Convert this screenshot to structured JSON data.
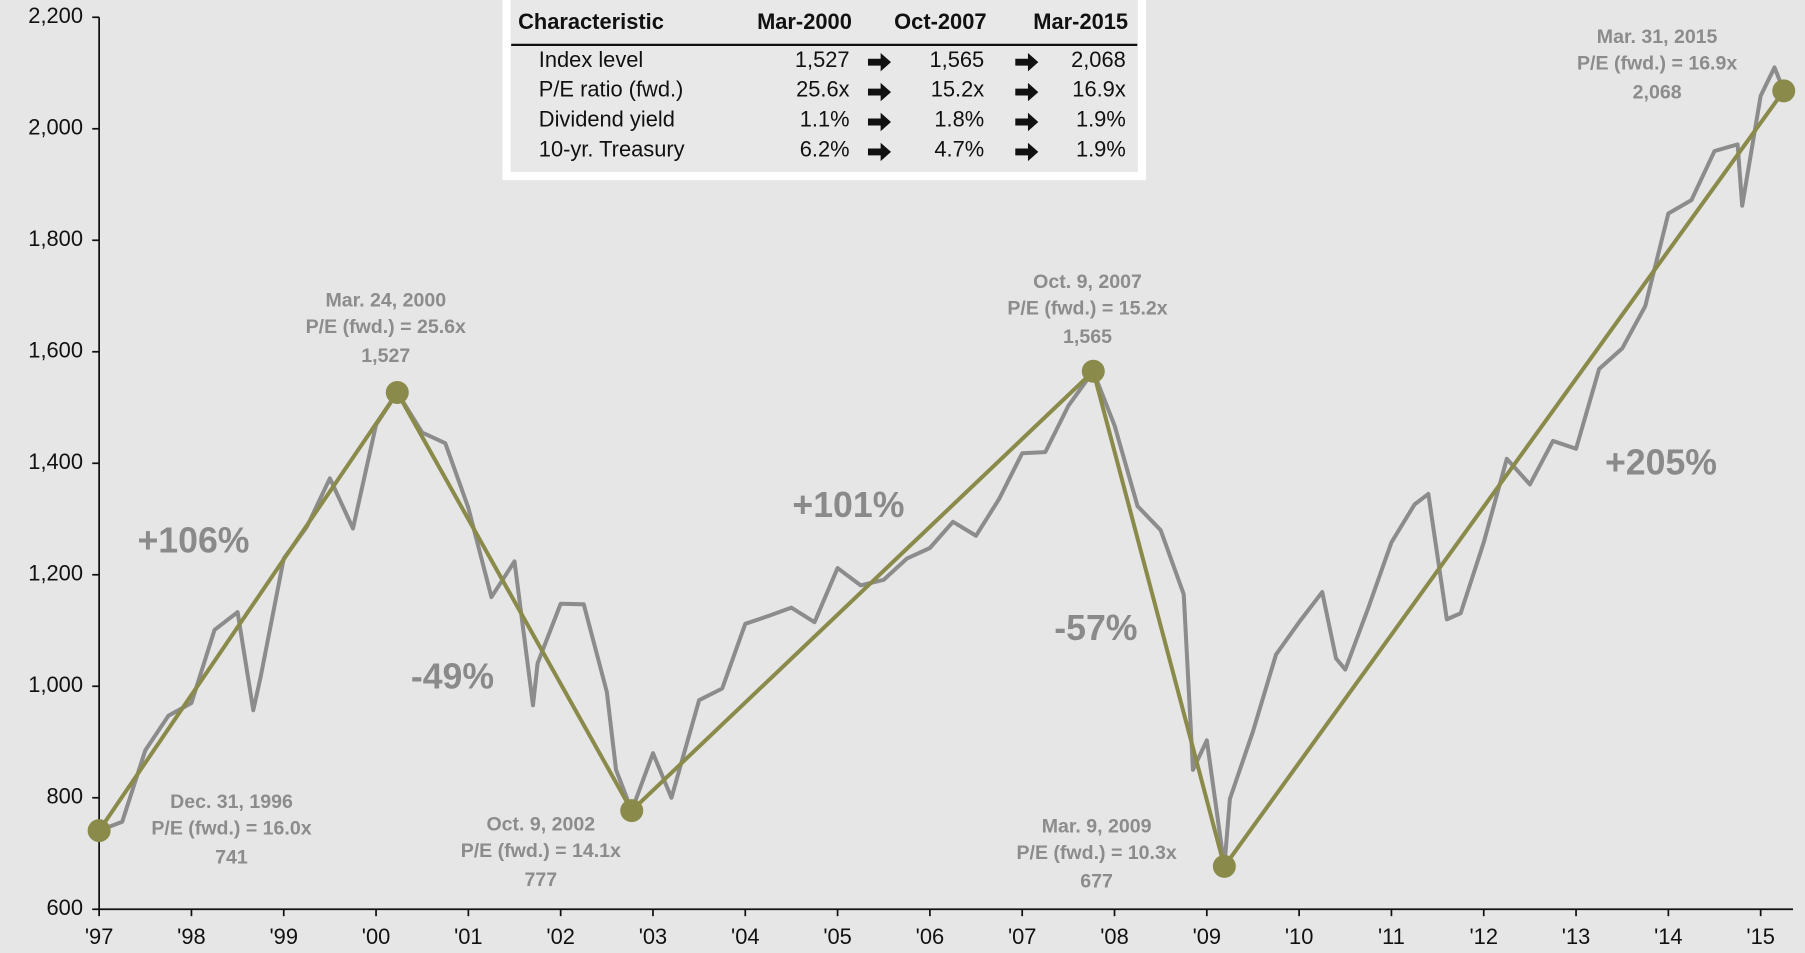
{
  "chart_data": {
    "type": "line",
    "xlim": [
      1997,
      2015.35
    ],
    "ylim": [
      600,
      2200
    ],
    "xticks": [
      {
        "value": 1997,
        "label": "'97"
      },
      {
        "value": 1998,
        "label": "'98"
      },
      {
        "value": 1999,
        "label": "'99"
      },
      {
        "value": 2000,
        "label": "'00"
      },
      {
        "value": 2001,
        "label": "'01"
      },
      {
        "value": 2002,
        "label": "'02"
      },
      {
        "value": 2003,
        "label": "'03"
      },
      {
        "value": 2004,
        "label": "'04"
      },
      {
        "value": 2005,
        "label": "'05"
      },
      {
        "value": 2006,
        "label": "'06"
      },
      {
        "value": 2007,
        "label": "'07"
      },
      {
        "value": 2008,
        "label": "'08"
      },
      {
        "value": 2009,
        "label": "'09"
      },
      {
        "value": 2010,
        "label": "'10"
      },
      {
        "value": 2011,
        "label": "'11"
      },
      {
        "value": 2012,
        "label": "'12"
      },
      {
        "value": 2013,
        "label": "'13"
      },
      {
        "value": 2014,
        "label": "'14"
      },
      {
        "value": 2015,
        "label": "'15"
      }
    ],
    "yticks": [
      600,
      800,
      {
        "value": 1000,
        "label": "1,000"
      },
      {
        "value": 1200,
        "label": "1,200"
      },
      {
        "value": 1400,
        "label": "1,400"
      },
      {
        "value": 1600,
        "label": "1,600"
      },
      {
        "value": 1800,
        "label": "1,800"
      },
      {
        "value": 2000,
        "label": "2,000"
      },
      {
        "value": 2200,
        "label": "2,200"
      }
    ],
    "series": [
      {
        "color": "#8c8c8c",
        "x": [
          1997.0,
          1997.25,
          1997.5,
          1997.75,
          1998.0,
          1998.25,
          1998.5,
          1998.67,
          1998.75,
          1999.0,
          1999.25,
          1999.5,
          1999.75,
          2000.0,
          2000.23,
          2000.5,
          2000.75,
          2001.0,
          2001.25,
          2001.5,
          2001.7,
          2001.75,
          2002.0,
          2002.25,
          2002.5,
          2002.6,
          2002.77,
          2003.0,
          2003.2,
          2003.5,
          2003.75,
          2004.0,
          2004.25,
          2004.5,
          2004.75,
          2005.0,
          2005.25,
          2005.5,
          2005.75,
          2006.0,
          2006.25,
          2006.5,
          2006.75,
          2007.0,
          2007.25,
          2007.5,
          2007.77,
          2008.0,
          2008.25,
          2008.5,
          2008.75,
          2008.85,
          2009.0,
          2009.19,
          2009.25,
          2009.5,
          2009.75,
          2010.0,
          2010.25,
          2010.4,
          2010.5,
          2010.75,
          2011.0,
          2011.25,
          2011.4,
          2011.6,
          2011.75,
          2012.0,
          2012.25,
          2012.5,
          2012.75,
          2013.0,
          2013.25,
          2013.5,
          2013.75,
          2014.0,
          2014.25,
          2014.5,
          2014.75,
          2014.8,
          2015.0,
          2015.15,
          2015.25
        ],
        "values": [
          741,
          757,
          885,
          947,
          970,
          1101,
          1133,
          957,
          1017,
          1229,
          1286,
          1373,
          1283,
          1469,
          1527,
          1455,
          1436,
          1320,
          1160,
          1224,
          966,
          1041,
          1148,
          1147,
          990,
          850,
          777,
          880,
          800,
          975,
          996,
          1112,
          1126,
          1141,
          1115,
          1212,
          1181,
          1191,
          1229,
          1248,
          1295,
          1270,
          1336,
          1418,
          1420,
          1503,
          1565,
          1468,
          1323,
          1280,
          1165,
          850,
          903,
          677,
          798,
          919,
          1057,
          1115,
          1169,
          1050,
          1030,
          1141,
          1258,
          1326,
          1345,
          1120,
          1131,
          1258,
          1408,
          1362,
          1440,
          1426,
          1569,
          1606,
          1682,
          1848,
          1872,
          1960,
          1972,
          1862,
          2059,
          2110,
          2068
        ]
      }
    ],
    "trend": {
      "color": "#8a8b4b",
      "x": [
        1997.0,
        2000.23,
        2002.77,
        2007.77,
        2009.19,
        2015.25
      ],
      "values": [
        741,
        1527,
        777,
        1565,
        677,
        2068
      ],
      "value_labels": [
        "741",
        "1,527",
        "777",
        "1,565",
        "677",
        "2,068"
      ],
      "dates": [
        "Dec. 31, 1996",
        "Mar. 24, 2000",
        "Oct. 9, 2002",
        "Oct. 9, 2007",
        "Mar. 9, 2009",
        "Mar. 31, 2015"
      ],
      "pe_labels": [
        "P/E (fwd.) = 16.0x",
        "P/E (fwd.) = 25.6x",
        "P/E (fwd.) = 14.1x",
        "P/E (fwd.) = 15.2x",
        "P/E (fwd.) = 10.3x",
        "P/E (fwd.) = 16.9x"
      ]
    },
    "changes": [
      "+106%",
      "-49%",
      "+101%",
      "-57%",
      "+205%"
    ],
    "table": {
      "columns": [
        "Characteristic",
        "Mar-2000",
        "Oct-2007",
        "Mar-2015"
      ],
      "rows": [
        [
          "Index level",
          "1,527",
          "1,565",
          "2,068"
        ],
        [
          "P/E ratio (fwd.)",
          "25.6x",
          "15.2x",
          "16.9x"
        ],
        [
          "Dividend yield",
          "1.1%",
          "1.8%",
          "1.9%"
        ],
        [
          "10-yr. Treasury",
          "6.2%",
          "4.7%",
          "1.9%"
        ]
      ]
    }
  }
}
